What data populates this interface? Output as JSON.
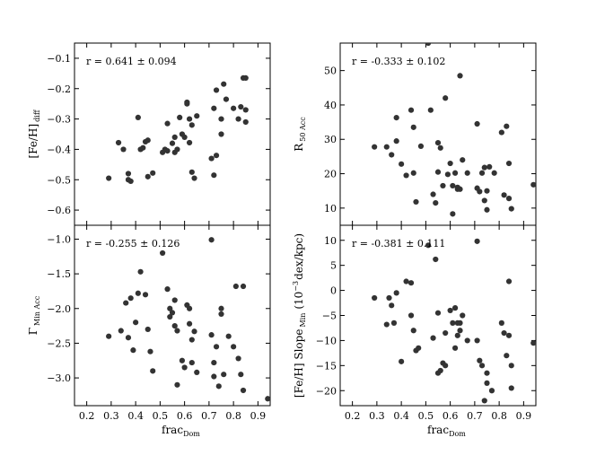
{
  "chart_data": [
    {
      "type": "scatter",
      "annotation": "r = 0.641 ± 0.094",
      "xlabel": "frac",
      "xlabel_sub": "Dom",
      "ylabel": "[Fe/H]",
      "ylabel_sub": "diff",
      "xlim": [
        0.15,
        0.95
      ],
      "ylim": [
        -0.65,
        -0.05
      ],
      "x_ticks": [
        0.2,
        0.3,
        0.4,
        0.5,
        0.6,
        0.7,
        0.8,
        0.9
      ],
      "y_ticks": [
        -0.6,
        -0.5,
        -0.4,
        -0.3,
        -0.2,
        -0.1
      ],
      "y_tick_labels": [
        "−0.6",
        "−0.5",
        "−0.4",
        "−0.3",
        "−0.2",
        "−0.1"
      ],
      "show_x_tick_labels": false,
      "points": [
        [
          0.29,
          -0.495
        ],
        [
          0.33,
          -0.378
        ],
        [
          0.35,
          -0.4
        ],
        [
          0.37,
          -0.48
        ],
        [
          0.37,
          -0.5
        ],
        [
          0.38,
          -0.505
        ],
        [
          0.41,
          -0.295
        ],
        [
          0.42,
          -0.4
        ],
        [
          0.43,
          -0.395
        ],
        [
          0.44,
          -0.375
        ],
        [
          0.45,
          -0.37
        ],
        [
          0.45,
          -0.49
        ],
        [
          0.47,
          -0.478
        ],
        [
          0.51,
          -0.41
        ],
        [
          0.52,
          -0.4
        ],
        [
          0.53,
          -0.405
        ],
        [
          0.53,
          -0.315
        ],
        [
          0.55,
          -0.38
        ],
        [
          0.56,
          -0.36
        ],
        [
          0.56,
          -0.41
        ],
        [
          0.57,
          -0.4
        ],
        [
          0.58,
          -0.295
        ],
        [
          0.59,
          -0.35
        ],
        [
          0.6,
          -0.36
        ],
        [
          0.61,
          -0.245
        ],
        [
          0.61,
          -0.25
        ],
        [
          0.62,
          -0.3
        ],
        [
          0.62,
          -0.378
        ],
        [
          0.63,
          -0.475
        ],
        [
          0.63,
          -0.32
        ],
        [
          0.64,
          -0.495
        ],
        [
          0.65,
          -0.29
        ],
        [
          0.71,
          -0.43
        ],
        [
          0.72,
          -0.265
        ],
        [
          0.72,
          -0.485
        ],
        [
          0.73,
          -0.205
        ],
        [
          0.73,
          -0.42
        ],
        [
          0.75,
          -0.3
        ],
        [
          0.75,
          -0.35
        ],
        [
          0.76,
          -0.185
        ],
        [
          0.77,
          -0.235
        ],
        [
          0.8,
          -0.265
        ],
        [
          0.82,
          -0.3
        ],
        [
          0.83,
          -0.26
        ],
        [
          0.84,
          -0.165
        ],
        [
          0.85,
          -0.165
        ],
        [
          0.85,
          -0.31
        ],
        [
          0.85,
          -0.27
        ]
      ]
    },
    {
      "type": "scatter",
      "annotation": "r = -0.333 ± 0.102",
      "xlabel": "frac",
      "xlabel_sub": "Dom",
      "ylabel": "R",
      "ylabel_sub": "50 Acc",
      "xlim": [
        0.15,
        0.95
      ],
      "ylim": [
        5,
        58
      ],
      "x_ticks": [
        0.2,
        0.3,
        0.4,
        0.5,
        0.6,
        0.7,
        0.8,
        0.9
      ],
      "y_ticks": [
        10,
        20,
        30,
        40,
        50
      ],
      "y_tick_labels": [
        "10",
        "20",
        "30",
        "40",
        "50"
      ],
      "show_x_tick_labels": false,
      "points": [
        [
          0.29,
          27.8
        ],
        [
          0.34,
          27.8
        ],
        [
          0.36,
          25.5
        ],
        [
          0.38,
          29.5
        ],
        [
          0.38,
          36.3
        ],
        [
          0.4,
          22.8
        ],
        [
          0.42,
          19.5
        ],
        [
          0.44,
          38.5
        ],
        [
          0.45,
          33.5
        ],
        [
          0.45,
          20.2
        ],
        [
          0.46,
          11.8
        ],
        [
          0.48,
          28.0
        ],
        [
          0.51,
          58.0
        ],
        [
          0.52,
          38.5
        ],
        [
          0.53,
          14.0
        ],
        [
          0.54,
          11.5
        ],
        [
          0.55,
          29.0
        ],
        [
          0.55,
          20.5
        ],
        [
          0.56,
          27.5
        ],
        [
          0.57,
          16.5
        ],
        [
          0.58,
          42.0
        ],
        [
          0.59,
          19.8
        ],
        [
          0.6,
          23.0
        ],
        [
          0.61,
          8.3
        ],
        [
          0.61,
          16.5
        ],
        [
          0.62,
          20.2
        ],
        [
          0.63,
          15.5
        ],
        [
          0.63,
          16.0
        ],
        [
          0.64,
          48.5
        ],
        [
          0.64,
          15.5
        ],
        [
          0.65,
          24.0
        ],
        [
          0.67,
          20.2
        ],
        [
          0.71,
          15.8
        ],
        [
          0.71,
          34.5
        ],
        [
          0.72,
          14.8
        ],
        [
          0.73,
          20.2
        ],
        [
          0.74,
          12.2
        ],
        [
          0.74,
          21.8
        ],
        [
          0.75,
          15.0
        ],
        [
          0.75,
          9.5
        ],
        [
          0.76,
          22.0
        ],
        [
          0.78,
          20.2
        ],
        [
          0.81,
          32.0
        ],
        [
          0.82,
          13.8
        ],
        [
          0.83,
          33.8
        ],
        [
          0.84,
          12.8
        ],
        [
          0.84,
          23.0
        ],
        [
          0.85,
          9.8
        ],
        [
          0.94,
          16.8
        ]
      ]
    },
    {
      "type": "scatter",
      "annotation": "r = -0.255 ± 0.126",
      "xlabel": "frac",
      "xlabel_sub": "Dom",
      "ylabel": "Γ",
      "ylabel_sub": "Min Acc",
      "xlim": [
        0.15,
        0.95
      ],
      "ylim": [
        -3.4,
        -0.8
      ],
      "x_ticks": [
        0.2,
        0.3,
        0.4,
        0.5,
        0.6,
        0.7,
        0.8,
        0.9
      ],
      "x_tick_labels": [
        "0.2",
        "0.3",
        "0.4",
        "0.5",
        "0.6",
        "0.7",
        "0.8",
        "0.9"
      ],
      "y_ticks": [
        -3.0,
        -2.5,
        -2.0,
        -1.5,
        -1.0
      ],
      "y_tick_labels": [
        "−3.0",
        "−2.5",
        "−2.0",
        "−1.5",
        "−1.0"
      ],
      "show_x_tick_labels": true,
      "points": [
        [
          0.29,
          -2.4
        ],
        [
          0.34,
          -2.32
        ],
        [
          0.36,
          -1.92
        ],
        [
          0.37,
          -2.42
        ],
        [
          0.38,
          -1.85
        ],
        [
          0.39,
          -2.6
        ],
        [
          0.4,
          -2.2
        ],
        [
          0.41,
          -1.78
        ],
        [
          0.42,
          -1.47
        ],
        [
          0.44,
          -1.8
        ],
        [
          0.45,
          -2.3
        ],
        [
          0.46,
          -2.62
        ],
        [
          0.47,
          -2.9
        ],
        [
          0.51,
          -1.2
        ],
        [
          0.53,
          -1.72
        ],
        [
          0.54,
          -2.12
        ],
        [
          0.54,
          -2.0
        ],
        [
          0.55,
          -2.06
        ],
        [
          0.56,
          -2.25
        ],
        [
          0.56,
          -1.88
        ],
        [
          0.57,
          -2.32
        ],
        [
          0.57,
          -3.1
        ],
        [
          0.59,
          -2.75
        ],
        [
          0.6,
          -2.85
        ],
        [
          0.61,
          -1.95
        ],
        [
          0.62,
          -2.0
        ],
        [
          0.62,
          -2.22
        ],
        [
          0.63,
          -2.78
        ],
        [
          0.63,
          -2.45
        ],
        [
          0.64,
          -2.33
        ],
        [
          0.65,
          -2.92
        ],
        [
          0.71,
          -1.01
        ],
        [
          0.71,
          -2.38
        ],
        [
          0.72,
          -2.78
        ],
        [
          0.72,
          -2.98
        ],
        [
          0.73,
          -2.55
        ],
        [
          0.74,
          -3.12
        ],
        [
          0.75,
          -2.08
        ],
        [
          0.75,
          -2.0
        ],
        [
          0.76,
          -2.95
        ],
        [
          0.78,
          -2.4
        ],
        [
          0.8,
          -2.55
        ],
        [
          0.81,
          -1.68
        ],
        [
          0.82,
          -2.72
        ],
        [
          0.83,
          -2.95
        ],
        [
          0.84,
          -1.68
        ],
        [
          0.84,
          -3.18
        ],
        [
          0.94,
          -3.3
        ]
      ]
    },
    {
      "type": "scatter",
      "annotation": "r = -0.381 ± 0.111",
      "xlabel": "frac",
      "xlabel_sub": "Dom",
      "ylabel": "[Fe/H] Slope",
      "ylabel_sub": "Min",
      "ylabel_tail": "(10",
      "ylabel_sup": "−3",
      "ylabel_end": "dex/kpc)",
      "xlim": [
        0.15,
        0.95
      ],
      "ylim": [
        -23,
        13
      ],
      "x_ticks": [
        0.2,
        0.3,
        0.4,
        0.5,
        0.6,
        0.7,
        0.8,
        0.9
      ],
      "x_tick_labels": [
        "0.2",
        "0.3",
        "0.4",
        "0.5",
        "0.6",
        "0.7",
        "0.8",
        "0.9"
      ],
      "y_ticks": [
        -20,
        -15,
        -10,
        -5,
        0,
        5,
        10
      ],
      "y_tick_labels": [
        "−20",
        "−15",
        "−10",
        "−5",
        "0",
        "5",
        "10"
      ],
      "show_x_tick_labels": true,
      "points": [
        [
          0.29,
          -1.5
        ],
        [
          0.34,
          -6.8
        ],
        [
          0.35,
          -1.5
        ],
        [
          0.36,
          -3.0
        ],
        [
          0.37,
          -6.5
        ],
        [
          0.38,
          -0.5
        ],
        [
          0.4,
          -14.2
        ],
        [
          0.42,
          1.8
        ],
        [
          0.44,
          1.5
        ],
        [
          0.44,
          -5.0
        ],
        [
          0.45,
          -8.0
        ],
        [
          0.46,
          -12.0
        ],
        [
          0.47,
          -11.5
        ],
        [
          0.51,
          9.0
        ],
        [
          0.53,
          -9.5
        ],
        [
          0.54,
          6.2
        ],
        [
          0.55,
          -16.5
        ],
        [
          0.55,
          -4.5
        ],
        [
          0.56,
          -16.0
        ],
        [
          0.57,
          -14.5
        ],
        [
          0.58,
          -15.0
        ],
        [
          0.58,
          -8.5
        ],
        [
          0.6,
          -4.0
        ],
        [
          0.61,
          -6.5
        ],
        [
          0.62,
          -3.5
        ],
        [
          0.62,
          -11.5
        ],
        [
          0.63,
          -6.5
        ],
        [
          0.63,
          -9.0
        ],
        [
          0.64,
          -6.5
        ],
        [
          0.64,
          -8.0
        ],
        [
          0.65,
          -5.0
        ],
        [
          0.67,
          -10.0
        ],
        [
          0.71,
          -10.0
        ],
        [
          0.71,
          9.8
        ],
        [
          0.72,
          -14.0
        ],
        [
          0.73,
          -15.0
        ],
        [
          0.74,
          -22.0
        ],
        [
          0.75,
          -16.5
        ],
        [
          0.75,
          -18.5
        ],
        [
          0.77,
          -20.0
        ],
        [
          0.81,
          -6.5
        ],
        [
          0.82,
          -8.5
        ],
        [
          0.83,
          -13.0
        ],
        [
          0.84,
          -9.0
        ],
        [
          0.84,
          1.8
        ],
        [
          0.85,
          -19.5
        ],
        [
          0.85,
          -15.0
        ],
        [
          0.94,
          -10.5
        ]
      ]
    }
  ]
}
